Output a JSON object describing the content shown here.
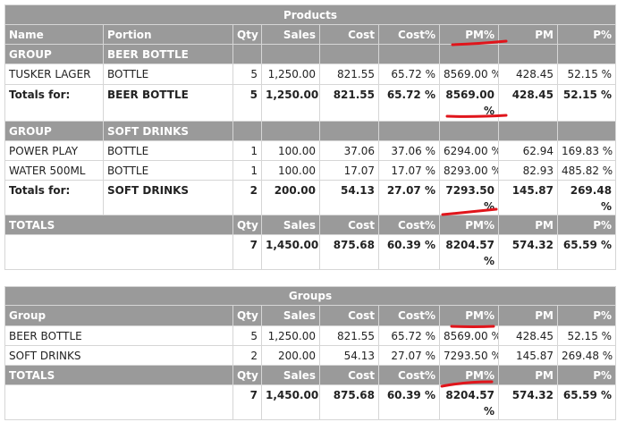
{
  "products": {
    "title": "Products",
    "headers": [
      "Name",
      "Portion",
      "Qty",
      "Sales",
      "Cost",
      "Cost%",
      "PM%",
      "PM",
      "P%"
    ],
    "groups": [
      {
        "label": "GROUP",
        "name": "BEER BOTTLE",
        "rows": [
          {
            "name": "TUSKER LAGER",
            "portion": "BOTTLE",
            "qty": "5",
            "sales": "1,250.00",
            "cost": "821.55",
            "costpct": "65.72 %",
            "pmpct": "8569.00 %",
            "pm": "428.45",
            "ppct": "52.15 %"
          }
        ],
        "totals": {
          "label": "Totals for:",
          "name": "BEER BOTTLE",
          "qty": "5",
          "sales": "1,250.00",
          "cost": "821.55",
          "costpct": "65.72 %",
          "pmpct": "8569.00 %",
          "pm": "428.45",
          "ppct": "52.15 %"
        }
      },
      {
        "label": "GROUP",
        "name": "SOFT DRINKS",
        "rows": [
          {
            "name": "POWER PLAY",
            "portion": "BOTTLE",
            "qty": "1",
            "sales": "100.00",
            "cost": "37.06",
            "costpct": "37.06 %",
            "pmpct": "6294.00 %",
            "pm": "62.94",
            "ppct": "169.83 %"
          },
          {
            "name": "WATER 500ML",
            "portion": "BOTTLE",
            "qty": "1",
            "sales": "100.00",
            "cost": "17.07",
            "costpct": "17.07 %",
            "pmpct": "8293.00 %",
            "pm": "82.93",
            "ppct": "485.82 %"
          }
        ],
        "totals": {
          "label": "Totals for:",
          "name": "SOFT DRINKS",
          "qty": "2",
          "sales": "200.00",
          "cost": "54.13",
          "costpct": "27.07 %",
          "pmpct": "7293.50 %",
          "pm": "145.87",
          "ppct": "269.48 %"
        }
      }
    ],
    "grand_totals": {
      "headers": [
        "TOTALS",
        "Qty",
        "Sales",
        "Cost",
        "Cost%",
        "PM%",
        "PM",
        "P%"
      ],
      "values": {
        "qty": "7",
        "sales": "1,450.00",
        "cost": "875.68",
        "costpct": "60.39 %",
        "pmpct": "8204.57 %",
        "pm": "574.32",
        "ppct": "65.59 %"
      }
    }
  },
  "groups_table": {
    "title": "Groups",
    "headers": [
      "Group",
      "Qty",
      "Sales",
      "Cost",
      "Cost%",
      "PM%",
      "PM",
      "P%"
    ],
    "rows": [
      {
        "group": "BEER BOTTLE",
        "qty": "5",
        "sales": "1,250.00",
        "cost": "821.55",
        "costpct": "65.72 %",
        "pmpct": "8569.00 %",
        "pm": "428.45",
        "ppct": "52.15 %"
      },
      {
        "group": "SOFT DRINKS",
        "qty": "2",
        "sales": "200.00",
        "cost": "54.13",
        "costpct": "27.07 %",
        "pmpct": "7293.50 %",
        "pm": "145.87",
        "ppct": "269.48 %"
      }
    ],
    "totals": {
      "headers": [
        "TOTALS",
        "Qty",
        "Sales",
        "Cost",
        "Cost%",
        "PM%",
        "PM",
        "P%"
      ],
      "values": {
        "qty": "7",
        "sales": "1,450.00",
        "cost": "875.68",
        "costpct": "60.39 %",
        "pmpct": "8204.57 %",
        "pm": "574.32",
        "ppct": "65.59 %"
      }
    }
  },
  "colors": {
    "header_bg": "#9a9a9a",
    "annotation": "#e0151b"
  }
}
